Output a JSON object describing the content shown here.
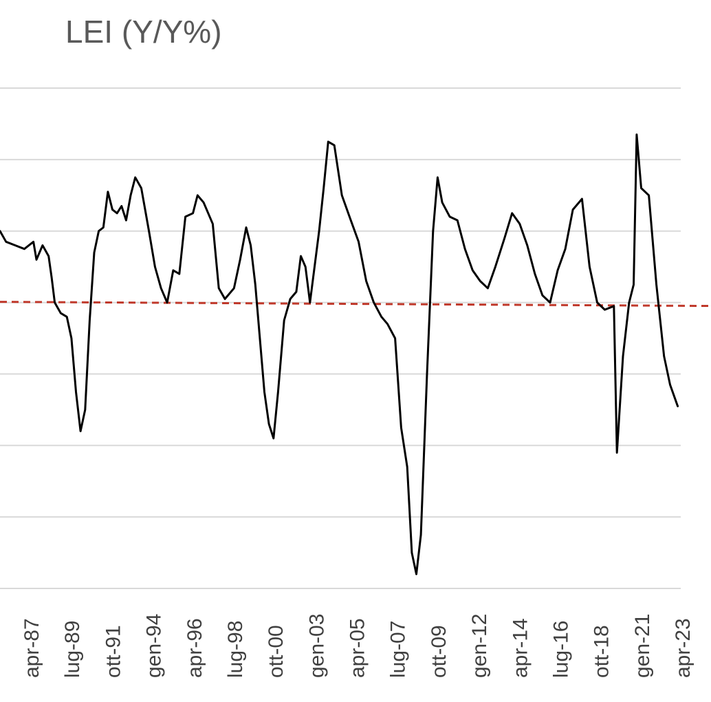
{
  "chart_data": {
    "type": "line",
    "title": "LEI (Y/Y%)",
    "xlabel": "",
    "ylabel": "",
    "x_tick_labels": [
      "apr-87",
      "lug-89",
      "ott-91",
      "gen-94",
      "apr-96",
      "lug-98",
      "ott-00",
      "gen-03",
      "apr-05",
      "lug-07",
      "ott-09",
      "gen-12",
      "apr-14",
      "lug-16",
      "ott-18",
      "gen-21",
      "apr-23"
    ],
    "x_range": [
      "1986-06",
      "2023-10"
    ],
    "y_range": [
      -8,
      6
    ],
    "y_gridlines": [
      -8,
      -6,
      -4,
      -2,
      0,
      2,
      4,
      6
    ],
    "y_tick_labels_visible": false,
    "legend": "none",
    "reference_line": {
      "value": 0,
      "color": "#c0392b",
      "style": "dashed"
    },
    "series": [
      {
        "color": "#000000",
        "points": [
          [
            "1986-06",
            2.0
          ],
          [
            "1986-10",
            1.7
          ],
          [
            "1987-04",
            1.6
          ],
          [
            "1987-10",
            1.5
          ],
          [
            "1988-04",
            1.7
          ],
          [
            "1988-06",
            1.2
          ],
          [
            "1988-10",
            1.6
          ],
          [
            "1989-02",
            1.3
          ],
          [
            "1989-04",
            0.7
          ],
          [
            "1989-06",
            0.0
          ],
          [
            "1989-10",
            -0.3
          ],
          [
            "1990-02",
            -0.4
          ],
          [
            "1990-05",
            -1.0
          ],
          [
            "1990-08",
            -2.5
          ],
          [
            "1990-11",
            -3.6
          ],
          [
            "1991-02",
            -3.0
          ],
          [
            "1991-05",
            -0.5
          ],
          [
            "1991-08",
            1.4
          ],
          [
            "1991-11",
            2.0
          ],
          [
            "1992-02",
            2.1
          ],
          [
            "1992-05",
            3.1
          ],
          [
            "1992-08",
            2.6
          ],
          [
            "1992-11",
            2.5
          ],
          [
            "1993-02",
            2.7
          ],
          [
            "1993-05",
            2.3
          ],
          [
            "1993-08",
            3.0
          ],
          [
            "1993-11",
            3.5
          ],
          [
            "1994-03",
            3.2
          ],
          [
            "1994-08",
            2.0
          ],
          [
            "1994-12",
            1.0
          ],
          [
            "1995-04",
            0.4
          ],
          [
            "1995-08",
            0.0
          ],
          [
            "1995-12",
            0.9
          ],
          [
            "1996-04",
            0.8
          ],
          [
            "1996-08",
            2.4
          ],
          [
            "1997-01",
            2.5
          ],
          [
            "1997-04",
            3.0
          ],
          [
            "1997-08",
            2.8
          ],
          [
            "1998-02",
            2.2
          ],
          [
            "1998-06",
            0.4
          ],
          [
            "1998-10",
            0.1
          ],
          [
            "1999-04",
            0.4
          ],
          [
            "1999-08",
            1.2
          ],
          [
            "1999-12",
            2.1
          ],
          [
            "2000-03",
            1.6
          ],
          [
            "2000-06",
            0.5
          ],
          [
            "2000-09",
            -1.0
          ],
          [
            "2000-12",
            -2.5
          ],
          [
            "2001-03",
            -3.4
          ],
          [
            "2001-06",
            -3.8
          ],
          [
            "2001-09",
            -2.5
          ],
          [
            "2002-01",
            -0.5
          ],
          [
            "2002-05",
            0.1
          ],
          [
            "2002-09",
            0.3
          ],
          [
            "2002-12",
            1.3
          ],
          [
            "2003-03",
            1.0
          ],
          [
            "2003-06",
            0.0
          ],
          [
            "2003-12",
            2.0
          ],
          [
            "2004-03",
            3.2
          ],
          [
            "2004-06",
            4.5
          ],
          [
            "2004-10",
            4.4
          ],
          [
            "2005-03",
            3.0
          ],
          [
            "2005-08",
            2.4
          ],
          [
            "2006-02",
            1.7
          ],
          [
            "2006-07",
            0.6
          ],
          [
            "2006-12",
            0.0
          ],
          [
            "2007-05",
            -0.4
          ],
          [
            "2007-09",
            -0.6
          ],
          [
            "2008-02",
            -1.0
          ],
          [
            "2008-06",
            -3.5
          ],
          [
            "2008-10",
            -4.6
          ],
          [
            "2009-01",
            -7.0
          ],
          [
            "2009-04",
            -7.6
          ],
          [
            "2009-07",
            -6.5
          ],
          [
            "2009-11",
            -2.0
          ],
          [
            "2010-03",
            2.0
          ],
          [
            "2010-06",
            3.5
          ],
          [
            "2010-09",
            2.8
          ],
          [
            "2011-02",
            2.4
          ],
          [
            "2011-07",
            2.3
          ],
          [
            "2011-12",
            1.5
          ],
          [
            "2012-05",
            0.9
          ],
          [
            "2012-10",
            0.6
          ],
          [
            "2013-03",
            0.4
          ],
          [
            "2013-08",
            1.0
          ],
          [
            "2014-02",
            1.8
          ],
          [
            "2014-07",
            2.5
          ],
          [
            "2014-12",
            2.2
          ],
          [
            "2015-05",
            1.6
          ],
          [
            "2015-10",
            0.8
          ],
          [
            "2016-03",
            0.2
          ],
          [
            "2016-08",
            0.0
          ],
          [
            "2017-01",
            0.9
          ],
          [
            "2017-06",
            1.5
          ],
          [
            "2017-11",
            2.6
          ],
          [
            "2018-05",
            2.9
          ],
          [
            "2018-10",
            1.0
          ],
          [
            "2019-03",
            0.0
          ],
          [
            "2019-08",
            -0.2
          ],
          [
            "2020-02",
            -0.1
          ],
          [
            "2020-04",
            -4.2
          ],
          [
            "2020-08",
            -1.5
          ],
          [
            "2020-12",
            0.0
          ],
          [
            "2021-03",
            0.5
          ],
          [
            "2021-05",
            4.7
          ],
          [
            "2021-08",
            3.2
          ],
          [
            "2022-01",
            3.0
          ],
          [
            "2022-06",
            0.5
          ],
          [
            "2022-11",
            -1.5
          ],
          [
            "2023-03",
            -2.3
          ],
          [
            "2023-08",
            -2.9
          ]
        ]
      }
    ]
  }
}
